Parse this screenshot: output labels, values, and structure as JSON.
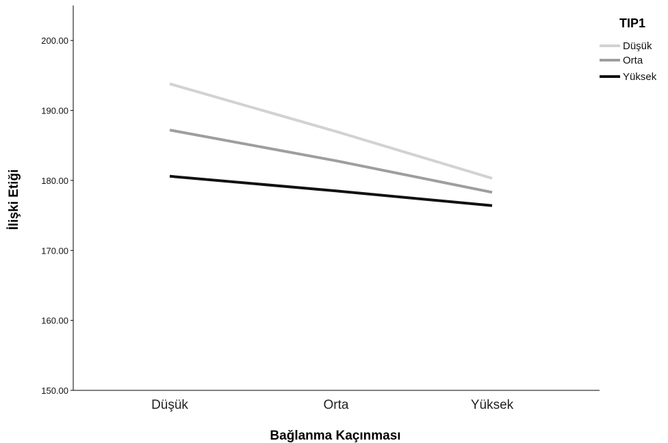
{
  "chart_data": {
    "type": "line",
    "xlabel": "Bağlanma Kaçınması",
    "ylabel": "İlişki Etiği",
    "categories": [
      "Düşük",
      "Orta",
      "Yüksek"
    ],
    "ylim": [
      150,
      205
    ],
    "yticks": [
      "150.00",
      "160.00",
      "170.00",
      "180.00",
      "190.00",
      "200.00"
    ],
    "grid": false,
    "legend": {
      "title": "TIP1",
      "placement": "top-right"
    },
    "series": [
      {
        "name": "Düşük",
        "color": "#d2d2d2",
        "values": [
          193.8,
          187.0,
          180.3
        ]
      },
      {
        "name": "Orta",
        "color": "#9e9e9e",
        "values": [
          187.2,
          182.8,
          178.3
        ]
      },
      {
        "name": "Yüksek",
        "color": "#111111",
        "values": [
          180.6,
          178.5,
          176.4
        ]
      }
    ]
  }
}
